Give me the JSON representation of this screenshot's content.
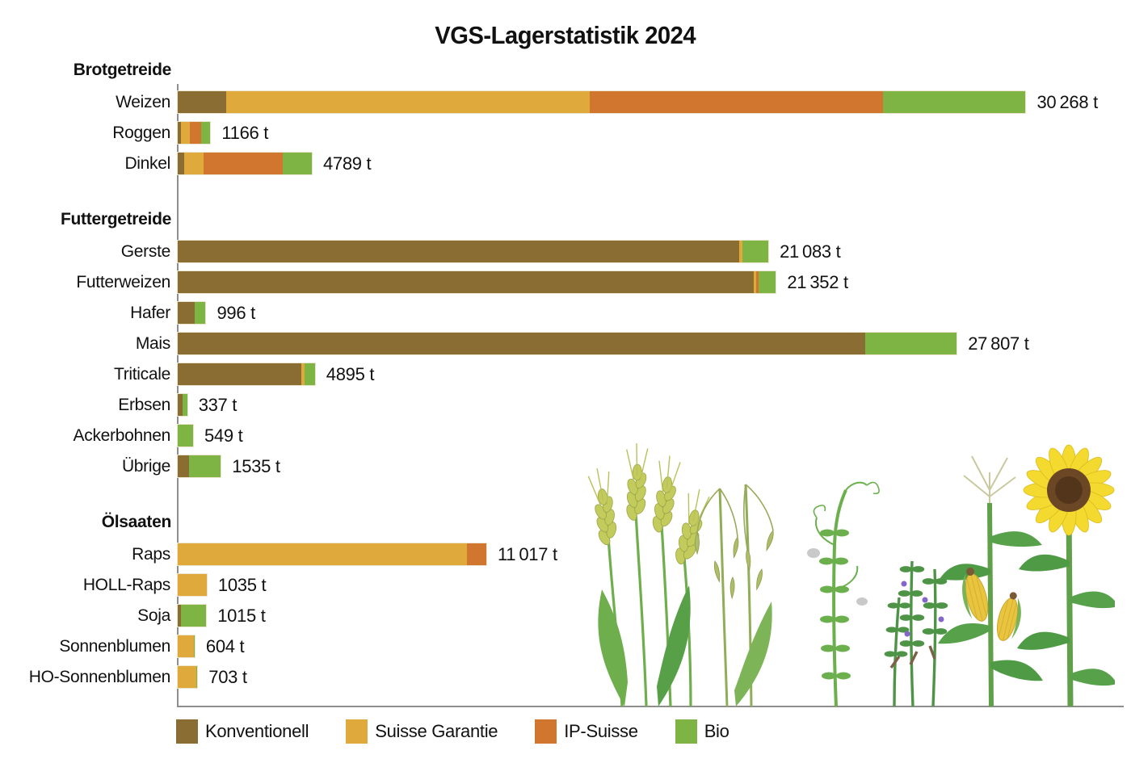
{
  "title": "VGS-Lagerstatistik 2024",
  "colors": {
    "konventionell": "#8A6D33",
    "suisse_garantie": "#E0A93B",
    "ip_suisse": "#D0762E",
    "bio": "#7DB443",
    "axis": "#8E8E8E"
  },
  "legend": [
    {
      "key": "konventionell",
      "label": "Konventionell"
    },
    {
      "key": "suisse_garantie",
      "label": "Suisse Garantie"
    },
    {
      "key": "ip_suisse",
      "label": "IP-Suisse"
    },
    {
      "key": "bio",
      "label": "Bio"
    }
  ],
  "chart_data": {
    "type": "bar",
    "orientation": "horizontal",
    "stacked": true,
    "unit": "t",
    "axis": {
      "x_max": 33800,
      "gridlines": false
    },
    "series_order": [
      "konventionell",
      "suisse_garantie",
      "ip_suisse",
      "bio"
    ],
    "series_labels": {
      "konventionell": "Konventionell",
      "suisse_garantie": "Suisse Garantie",
      "ip_suisse": "IP-Suisse",
      "bio": "Bio"
    },
    "groups": [
      {
        "label": "Brotgetreide",
        "rows": [
          {
            "label": "Weizen",
            "total": 30268,
            "value_label": "30 268 t",
            "segments": {
              "konventionell": 1730,
              "suisse_garantie": 12980,
              "ip_suisse": 10470,
              "bio": 5088
            }
          },
          {
            "label": "Roggen",
            "total": 1166,
            "value_label": "1166 t",
            "segments": {
              "konventionell": 110,
              "suisse_garantie": 330,
              "ip_suisse": 400,
              "bio": 326
            }
          },
          {
            "label": "Dinkel",
            "total": 4789,
            "value_label": "4789 t",
            "segments": {
              "konventionell": 230,
              "suisse_garantie": 690,
              "ip_suisse": 2830,
              "bio": 1039
            }
          }
        ]
      },
      {
        "label": "Futtergetreide",
        "rows": [
          {
            "label": "Gerste",
            "total": 21083,
            "value_label": "21 083 t",
            "segments": {
              "konventionell": 20043,
              "suisse_garantie": 120,
              "ip_suisse": 0,
              "bio": 920
            }
          },
          {
            "label": "Futterweizen",
            "total": 21352,
            "value_label": "21 352 t",
            "segments": {
              "konventionell": 20560,
              "suisse_garantie": 80,
              "ip_suisse": 100,
              "bio": 612
            }
          },
          {
            "label": "Hafer",
            "total": 996,
            "value_label": "996 t",
            "segments": {
              "konventionell": 600,
              "suisse_garantie": 0,
              "ip_suisse": 0,
              "bio": 396
            }
          },
          {
            "label": "Mais",
            "total": 27807,
            "value_label": "27 807 t",
            "segments": {
              "konventionell": 24550,
              "suisse_garantie": 0,
              "ip_suisse": 0,
              "bio": 3257
            }
          },
          {
            "label": "Triticale",
            "total": 4895,
            "value_label": "4895 t",
            "segments": {
              "konventionell": 4400,
              "suisse_garantie": 120,
              "ip_suisse": 0,
              "bio": 375
            }
          },
          {
            "label": "Erbsen",
            "total": 337,
            "value_label": "337 t",
            "segments": {
              "konventionell": 170,
              "suisse_garantie": 0,
              "ip_suisse": 0,
              "bio": 167
            }
          },
          {
            "label": "Ackerbohnen",
            "total": 549,
            "value_label": "549 t",
            "segments": {
              "konventionell": 0,
              "suisse_garantie": 0,
              "ip_suisse": 0,
              "bio": 549
            }
          },
          {
            "label": "Übrige",
            "total": 1535,
            "value_label": "1535 t",
            "segments": {
              "konventionell": 400,
              "suisse_garantie": 0,
              "ip_suisse": 0,
              "bio": 1135
            }
          }
        ]
      },
      {
        "label": "Ölsaaten",
        "rows": [
          {
            "label": "Raps",
            "total": 11017,
            "value_label": "11 017 t",
            "segments": {
              "konventionell": 0,
              "suisse_garantie": 10330,
              "ip_suisse": 687,
              "bio": 0
            }
          },
          {
            "label": "HOLL-Raps",
            "total": 1035,
            "value_label": "1035 t",
            "segments": {
              "konventionell": 0,
              "suisse_garantie": 1035,
              "ip_suisse": 0,
              "bio": 0
            }
          },
          {
            "label": "Soja",
            "total": 1015,
            "value_label": "1015 t",
            "segments": {
              "konventionell": 115,
              "suisse_garantie": 0,
              "ip_suisse": 0,
              "bio": 900
            }
          },
          {
            "label": "Sonnenblumen",
            "total": 604,
            "value_label": "604 t",
            "segments": {
              "konventionell": 0,
              "suisse_garantie": 580,
              "ip_suisse": 0,
              "bio": 24
            }
          },
          {
            "label": "HO-Sonnenblumen",
            "total": 703,
            "value_label": "703 t",
            "segments": {
              "konventionell": 0,
              "suisse_garantie": 670,
              "ip_suisse": 0,
              "bio": 33
            }
          }
        ]
      }
    ]
  },
  "decor": {
    "plants": [
      "wheat-ears",
      "oat-panicle",
      "pea-plant",
      "vetch-plant",
      "corn-plant",
      "sunflower-plant"
    ]
  }
}
